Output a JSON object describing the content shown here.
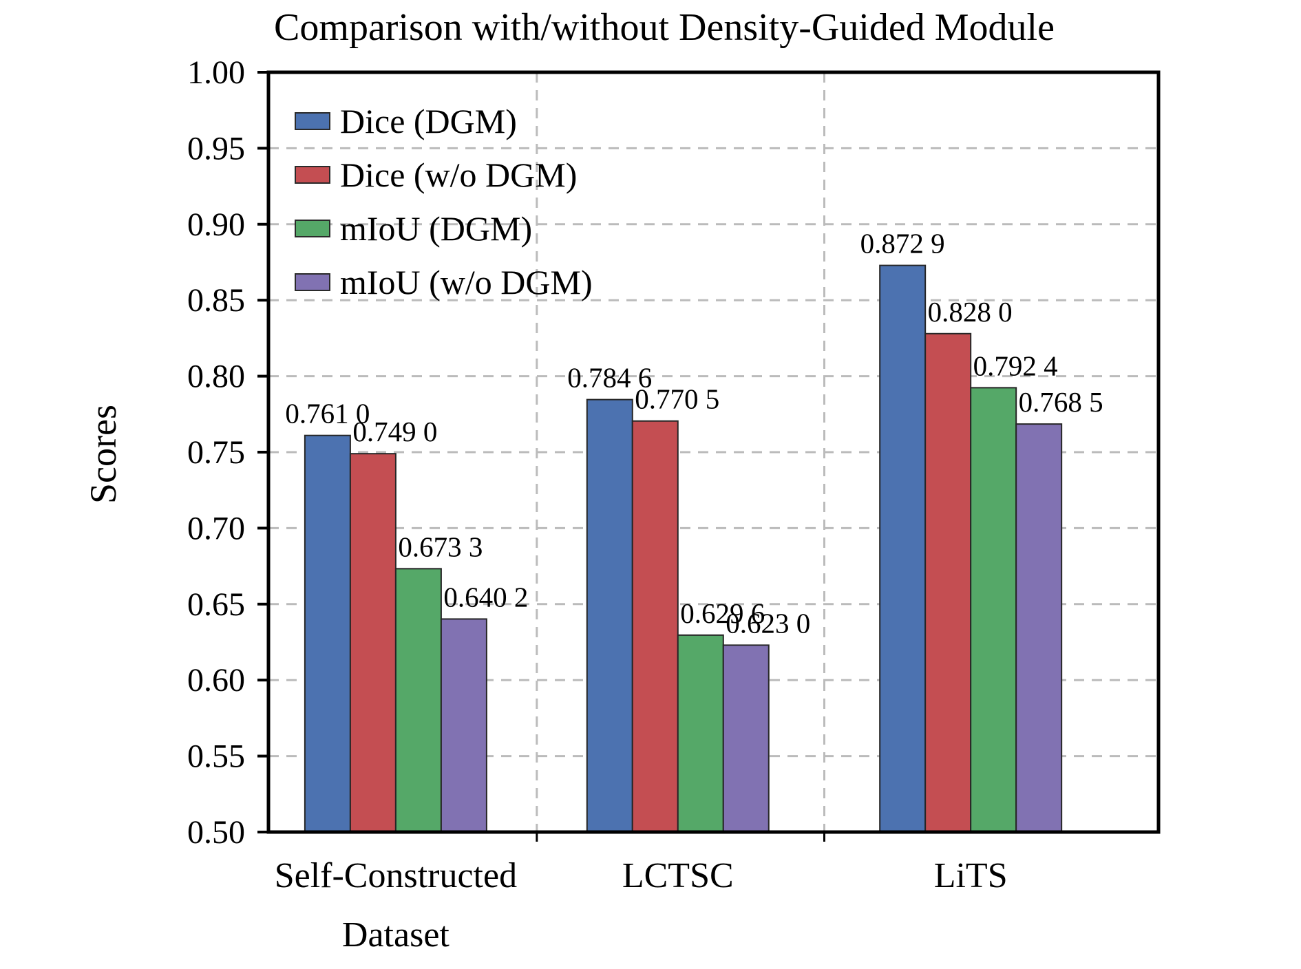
{
  "chart_data": {
    "type": "bar",
    "title": "Comparison with/without Density-Guided Module",
    "ylabel": "Scores",
    "xlabel": "",
    "ylim": [
      0.5,
      1.0
    ],
    "ytick_step": 0.05,
    "ytick_labels": [
      "1.00",
      "0.95",
      "0.90",
      "0.85",
      "0.80",
      "0.75",
      "0.70",
      "0.65",
      "0.60",
      "0.55",
      "0.50"
    ],
    "grid": "dashed",
    "legend_position": "upper left",
    "categories": [
      [
        "Self-Constructed",
        "Dataset"
      ],
      [
        "LCTSC"
      ],
      [
        "LiTS"
      ]
    ],
    "series": [
      {
        "name": "Dice (DGM)",
        "color": "#4C72B0",
        "values": [
          0.761,
          0.7846,
          0.8729
        ],
        "value_labels": [
          "0.761 0",
          "0.784 6",
          "0.872 9"
        ]
      },
      {
        "name": "Dice (w/o DGM)",
        "color": "#C44E52",
        "values": [
          0.749,
          0.7705,
          0.828
        ],
        "value_labels": [
          "0.749 0",
          "0.770 5",
          "0.828 0"
        ]
      },
      {
        "name": "mIoU (DGM)",
        "color": "#55A868",
        "values": [
          0.6733,
          0.6296,
          0.7924
        ],
        "value_labels": [
          "0.673 3",
          "0.629 6",
          "0.792 4"
        ]
      },
      {
        "name": "mIoU (w/o DGM)",
        "color": "#8172B2",
        "values": [
          0.6402,
          0.623,
          0.7685
        ],
        "value_labels": [
          "0.640 2",
          "0.623 0",
          "0.768 5"
        ]
      }
    ]
  }
}
